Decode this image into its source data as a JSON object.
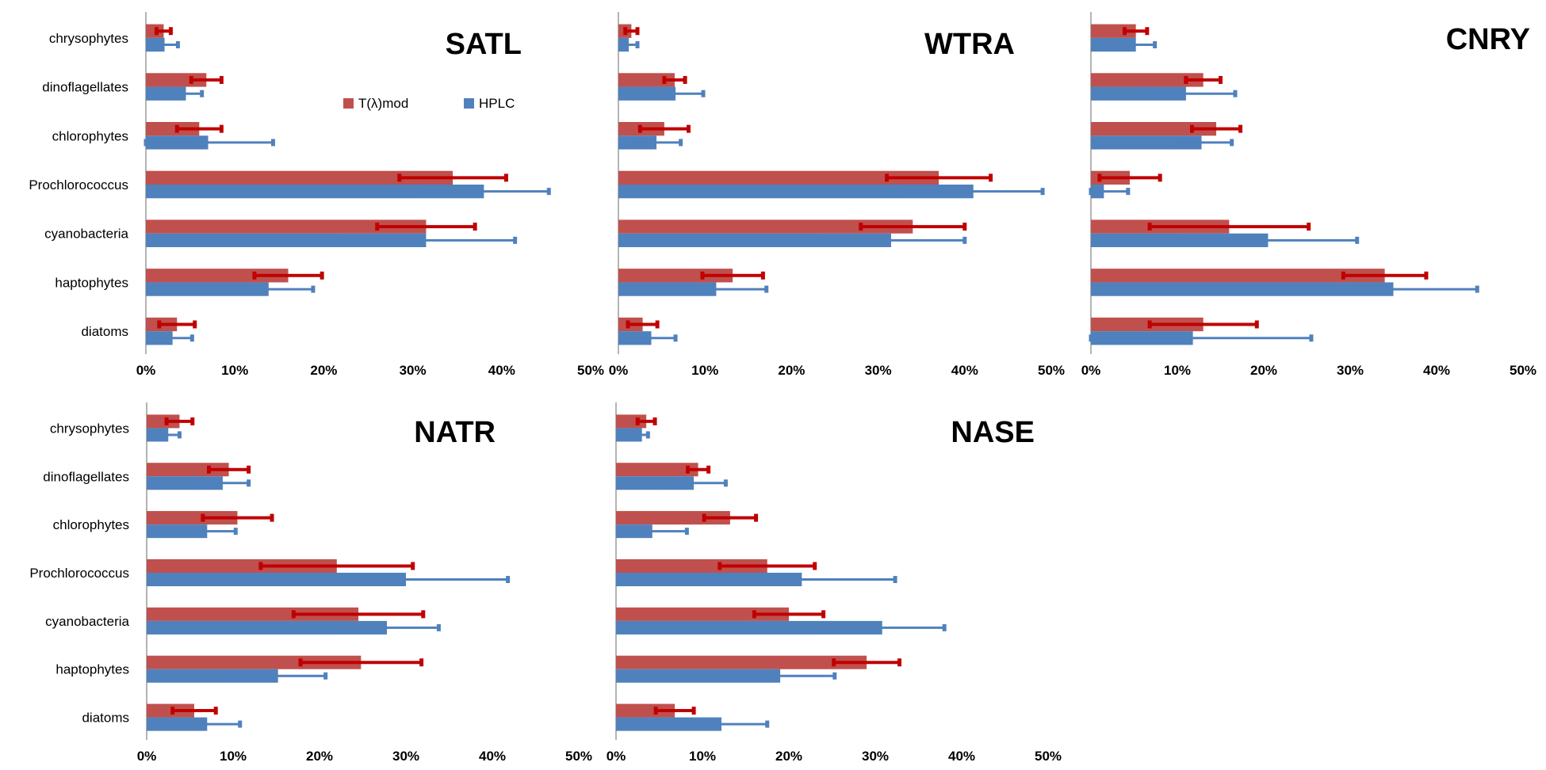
{
  "chart_data": {
    "type": "bar",
    "orientation": "horizontal",
    "categories": [
      "chrysophytes",
      "dinoflagellates",
      "chlorophytes",
      "Prochlorococcus",
      "cyanobacteria",
      "haptophytes",
      "diatoms"
    ],
    "x_tick_labels": [
      "0%",
      "10%",
      "20%",
      "30%",
      "40%",
      "50%"
    ],
    "xlim": [
      0,
      50
    ],
    "legend": [
      {
        "name": "T(λ)mod",
        "color": "#c0504d",
        "error_color": "#c00000"
      },
      {
        "name": "HPLC",
        "color": "#4f81bd",
        "error_color": "#4f81bd"
      }
    ],
    "panels": [
      {
        "title": "SATL",
        "series": [
          {
            "name": "T(λ)mod",
            "values": [
              2.0,
              6.8,
              6.0,
              34.5,
              31.5,
              16.0,
              3.5
            ],
            "errors": [
              0.8,
              1.7,
              2.5,
              6.0,
              5.5,
              3.8,
              2.0
            ]
          },
          {
            "name": "HPLC",
            "values": [
              2.1,
              4.5,
              7.0,
              38.0,
              31.5,
              13.8,
              3.0
            ],
            "errors": [
              1.5,
              1.8,
              7.3,
              7.3,
              10.0,
              5.0,
              2.2
            ]
          }
        ]
      },
      {
        "title": "WTRA",
        "series": [
          {
            "name": "T(λ)mod",
            "values": [
              1.5,
              6.5,
              5.3,
              37.0,
              34.0,
              13.2,
              2.8
            ],
            "errors": [
              0.7,
              1.2,
              2.8,
              6.0,
              6.0,
              3.5,
              1.7
            ]
          },
          {
            "name": "HPLC",
            "values": [
              1.2,
              6.6,
              4.4,
              41.0,
              31.5,
              11.3,
              3.8
            ],
            "errors": [
              1.0,
              3.2,
              2.8,
              8.0,
              8.5,
              5.8,
              2.8
            ]
          }
        ]
      },
      {
        "title": "CNRY",
        "series": [
          {
            "name": "T(λ)mod",
            "values": [
              5.2,
              13.0,
              14.5,
              4.5,
              16.0,
              34.0,
              13.0
            ],
            "errors": [
              1.3,
              2.0,
              2.8,
              3.5,
              9.2,
              4.8,
              6.2
            ]
          },
          {
            "name": "HPLC",
            "values": [
              5.2,
              11.0,
              12.8,
              1.5,
              20.5,
              35.0,
              11.8
            ],
            "errors": [
              2.2,
              5.7,
              3.5,
              2.8,
              10.3,
              9.7,
              13.7
            ]
          }
        ]
      },
      {
        "title": "NATR",
        "series": [
          {
            "name": "T(λ)mod",
            "values": [
              3.8,
              9.5,
              10.5,
              22.0,
              24.5,
              24.8,
              5.5
            ],
            "errors": [
              1.5,
              2.3,
              4.0,
              8.8,
              7.5,
              7.0,
              2.5
            ]
          },
          {
            "name": "HPLC",
            "values": [
              2.5,
              8.8,
              7.0,
              30.0,
              27.8,
              15.2,
              7.0
            ],
            "errors": [
              1.3,
              3.0,
              3.3,
              11.8,
              6.0,
              5.5,
              3.8
            ]
          }
        ]
      },
      {
        "title": "NASE",
        "series": [
          {
            "name": "T(λ)mod",
            "values": [
              3.5,
              9.5,
              13.2,
              17.5,
              20.0,
              29.0,
              6.8
            ],
            "errors": [
              1.0,
              1.2,
              3.0,
              5.5,
              4.0,
              3.8,
              2.2
            ]
          },
          {
            "name": "HPLC",
            "values": [
              3.0,
              9.0,
              4.2,
              21.5,
              30.8,
              19.0,
              12.2
            ],
            "errors": [
              0.7,
              3.7,
              4.0,
              10.8,
              7.2,
              6.3,
              5.3
            ]
          }
        ]
      }
    ]
  }
}
